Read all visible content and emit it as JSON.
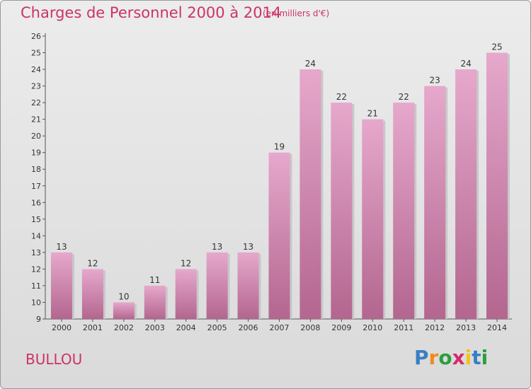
{
  "header": {
    "title": "Charges de Personnel 2000 à 2014",
    "unit": "(en milliers d'€)"
  },
  "footer": {
    "commune": "BULLOU",
    "logo_letters": [
      "P",
      "r",
      "o",
      "x",
      "i",
      "t",
      "i"
    ],
    "logo_colors": [
      "#3a7fc4",
      "#f08a1c",
      "#2b9f3f",
      "#d42a6b",
      "#f2c21a",
      "#3a7fc4",
      "#2b9f3f"
    ]
  },
  "chart_data": {
    "type": "bar",
    "categories": [
      "2000",
      "2001",
      "2002",
      "2003",
      "2004",
      "2005",
      "2006",
      "2007",
      "2008",
      "2009",
      "2010",
      "2011",
      "2012",
      "2013",
      "2014"
    ],
    "values": [
      13,
      12,
      10,
      11,
      12,
      13,
      13,
      19,
      24,
      22,
      21,
      22,
      23,
      24,
      25
    ],
    "title": "Charges de Personnel 2000 à 2014",
    "ylim": [
      9,
      26
    ],
    "yticks": [
      9,
      10,
      11,
      12,
      13,
      14,
      15,
      16,
      17,
      18,
      19,
      20,
      21,
      22,
      23,
      24,
      25,
      26
    ],
    "grid": false,
    "bar_color": "#cc6699",
    "bar_color_light": "#e6a8cc",
    "bar_color_dark": "#b3668f"
  }
}
